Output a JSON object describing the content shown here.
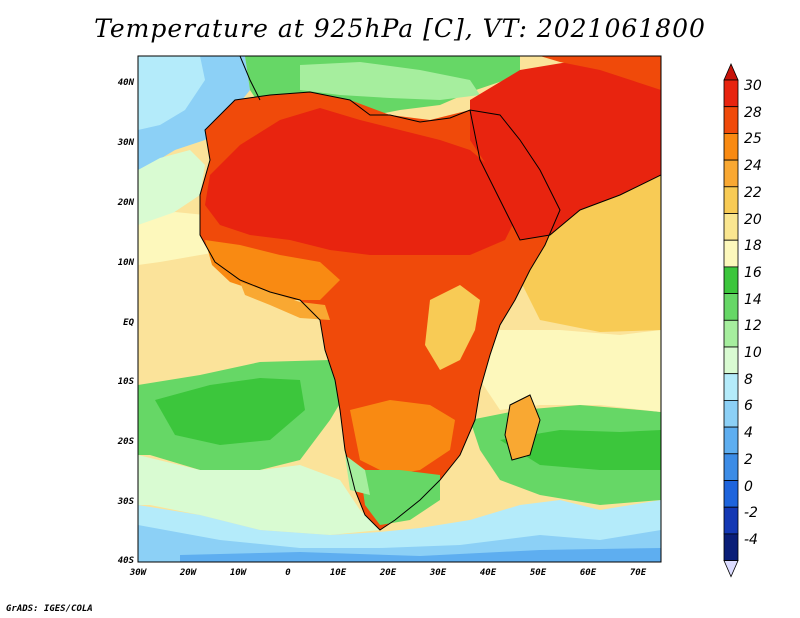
{
  "title": "Temperature at 925hPa [C], VT: 2021061800",
  "credit": "GrADS: IGES/COLA",
  "map": {
    "region": "Africa",
    "variable": "Temperature at 925hPa",
    "units": "C",
    "lat_ticks": [
      "40N",
      "30N",
      "20N",
      "10N",
      "EQ",
      "10S",
      "20S",
      "30S",
      "40S"
    ],
    "lon_ticks": [
      "30W",
      "20W",
      "10W",
      "0",
      "10E",
      "20E",
      "30E",
      "40E",
      "50E",
      "60E",
      "70E"
    ]
  },
  "colorbar": {
    "labels": [
      "30",
      "28",
      "25",
      "24",
      "22",
      "20",
      "18",
      "16",
      "14",
      "12",
      "10",
      "8",
      "6",
      "4",
      "2",
      "0",
      "-2",
      "-4"
    ],
    "colors": [
      "#e8240f",
      "#f04a0a",
      "#f98a12",
      "#f9a832",
      "#f8cb55",
      "#fae690",
      "#fdf8bc",
      "#3cc63c",
      "#66d766",
      "#a6ee9e",
      "#d9fbd2",
      "#b4ebfa",
      "#8cd0f6",
      "#5eaef0",
      "#3c8ce6",
      "#1e64dc",
      "#1438b4",
      "#0a1e78"
    ],
    "top_color": "#c8140a",
    "bottom_color": "#dcdcff"
  }
}
